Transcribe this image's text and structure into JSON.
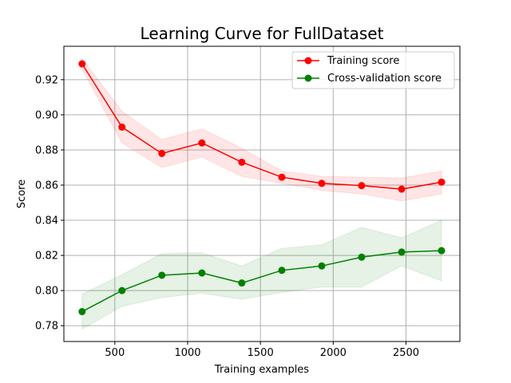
{
  "chart_data": {
    "type": "line",
    "title": "Learning Curve for FullDataset",
    "xlabel": "Training examples",
    "ylabel": "Score",
    "xlim": [
      150,
      2870
    ],
    "ylim": [
      0.771,
      0.939
    ],
    "x_ticks": [
      500,
      1000,
      1500,
      2000,
      2500
    ],
    "y_ticks": [
      0.78,
      0.8,
      0.82,
      0.84,
      0.86,
      0.88,
      0.9,
      0.92
    ],
    "grid": true,
    "legend_position": "top-right",
    "x": [
      275,
      549,
      823,
      1098,
      1372,
      1647,
      1921,
      2195,
      2470,
      2744
    ],
    "series": [
      {
        "name": "Training score",
        "color": "#ff0000",
        "band_color": "#ff0000",
        "values": [
          0.929,
          0.893,
          0.878,
          0.884,
          0.873,
          0.8645,
          0.861,
          0.8597,
          0.8577,
          0.8617
        ],
        "lower": [
          0.926,
          0.884,
          0.87,
          0.876,
          0.865,
          0.861,
          0.857,
          0.855,
          0.851,
          0.855
        ],
        "upper": [
          0.932,
          0.902,
          0.886,
          0.892,
          0.881,
          0.868,
          0.865,
          0.8645,
          0.864,
          0.868
        ]
      },
      {
        "name": "Cross-validation score",
        "color": "#008000",
        "band_color": "#008000",
        "values": [
          0.788,
          0.8,
          0.8087,
          0.81,
          0.8043,
          0.8115,
          0.814,
          0.819,
          0.8219,
          0.8227
        ],
        "lower": [
          0.778,
          0.791,
          0.796,
          0.7985,
          0.795,
          0.799,
          0.802,
          0.802,
          0.814,
          0.8055
        ],
        "upper": [
          0.798,
          0.809,
          0.821,
          0.8215,
          0.814,
          0.824,
          0.826,
          0.836,
          0.83,
          0.84
        ]
      }
    ]
  }
}
